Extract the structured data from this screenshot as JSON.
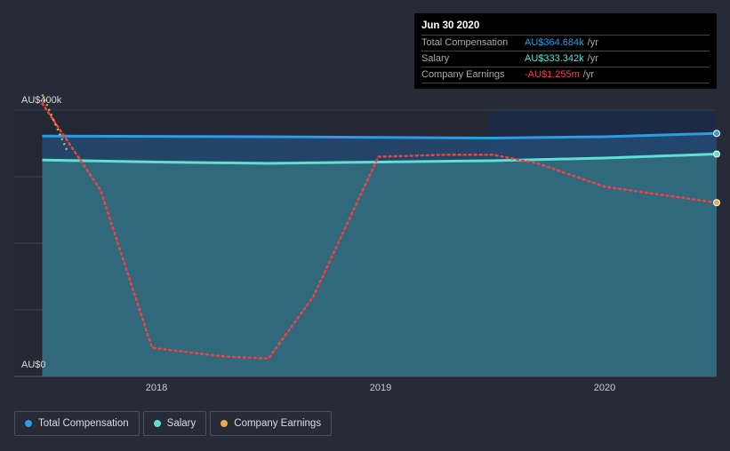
{
  "tooltip": {
    "date": "Jun 30 2020",
    "rows": [
      {
        "label": "Total Compensation",
        "value": "AU$364.684k",
        "unit": "/yr",
        "color": "#2d9be6"
      },
      {
        "label": "Salary",
        "value": "AU$333.342k",
        "unit": "/yr",
        "color": "#5fe0d0"
      },
      {
        "label": "Company Earnings",
        "value": "-AU$1.255m",
        "unit": "/yr",
        "color": "#ef4343"
      }
    ]
  },
  "legend": [
    {
      "label": "Total Compensation",
      "color": "#2d9be6"
    },
    {
      "label": "Salary",
      "color": "#5fe0d0"
    },
    {
      "label": "Company Earnings",
      "color": "#e8a94f"
    }
  ],
  "chart_data": {
    "type": "line",
    "ylim": [
      0,
      400
    ],
    "y_tick_labels": [
      "AU$0",
      "AU$400k"
    ],
    "x_tick_labels": [
      "2018",
      "2019",
      "2020"
    ],
    "xlim": [
      2017.37,
      2020.5
    ],
    "series": [
      {
        "name": "Total Compensation",
        "color": "#2d9be6",
        "x": [
          2017.49,
          2018.5,
          2019.5,
          2020.0,
          2020.5
        ],
        "y": [
          361,
          360,
          358,
          360,
          365
        ]
      },
      {
        "name": "Salary",
        "color": "#5fe0d0",
        "x": [
          2017.49,
          2018.0,
          2018.5,
          2019.0,
          2019.5,
          2020.0,
          2020.5
        ],
        "y": [
          325,
          322,
          320,
          322,
          324,
          328,
          334
        ]
      },
      {
        "name": "Company Earnings (plotted)",
        "color": "#ef4343",
        "x": [
          2017.49,
          2017.75,
          2017.98,
          2018.3,
          2018.5,
          2018.7,
          2018.99,
          2019.3,
          2019.5,
          2019.7,
          2020.0,
          2020.5
        ],
        "y": [
          410,
          280,
          43,
          30,
          27,
          120,
          330,
          333,
          333,
          320,
          285,
          261
        ]
      }
    ]
  }
}
